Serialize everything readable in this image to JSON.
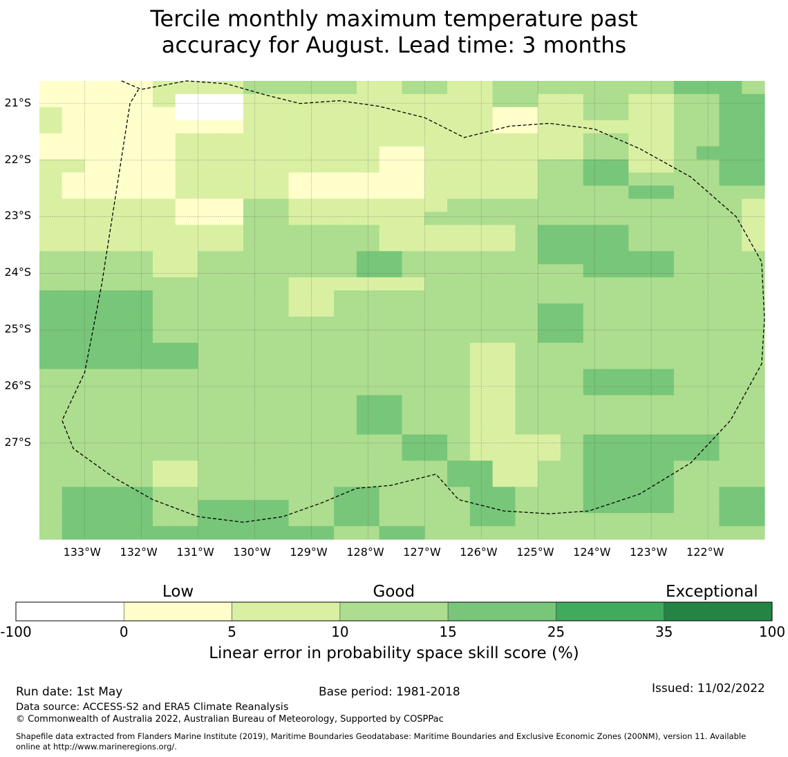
{
  "title_line1": "Tercile monthly maximum temperature past",
  "title_line2": "accuracy for August. Lead time: 3 months",
  "map": {
    "lon_min": -133.8,
    "lon_max": -121.0,
    "lat_top": -20.6,
    "lat_bottom": -28.7,
    "cell_lon": 0.8333333,
    "cell_lat": 0.5555556,
    "lon_ticks": [
      {
        "value": -133,
        "label": "133°W"
      },
      {
        "value": -132,
        "label": "132°W"
      },
      {
        "value": -131,
        "label": "131°W"
      },
      {
        "value": -130,
        "label": "130°W"
      },
      {
        "value": -129,
        "label": "129°W"
      },
      {
        "value": -128,
        "label": "128°W"
      },
      {
        "value": -127,
        "label": "127°W"
      },
      {
        "value": -126,
        "label": "126°W"
      },
      {
        "value": -125,
        "label": "125°W"
      },
      {
        "value": -124,
        "label": "124°W"
      },
      {
        "value": -123,
        "label": "123°W"
      },
      {
        "value": -122,
        "label": "122°W"
      }
    ],
    "lat_ticks": [
      {
        "value": -21,
        "label": "21°S"
      },
      {
        "value": -22,
        "label": "22°S"
      },
      {
        "value": -23,
        "label": "23°S"
      },
      {
        "value": -24,
        "label": "24°S"
      },
      {
        "value": -25,
        "label": "25°S"
      },
      {
        "value": -26,
        "label": "26°S"
      },
      {
        "value": -27,
        "label": "27°S"
      }
    ],
    "grid": [
      [
        1,
        1,
        1,
        1,
        1,
        2,
        2,
        2,
        2,
        3,
        3,
        3,
        3,
        3,
        2,
        2,
        3,
        3,
        2,
        2,
        3,
        3,
        3,
        3,
        3,
        3,
        3,
        3,
        4,
        4,
        4,
        3
      ],
      [
        1,
        1,
        1,
        1,
        1,
        2,
        0,
        0,
        0,
        2,
        2,
        2,
        2,
        2,
        2,
        2,
        2,
        2,
        2,
        2,
        3,
        3,
        2,
        2,
        3,
        3,
        2,
        2,
        3,
        3,
        4,
        4
      ],
      [
        2,
        1,
        1,
        1,
        1,
        1,
        0,
        0,
        0,
        2,
        2,
        2,
        2,
        2,
        2,
        2,
        2,
        2,
        2,
        2,
        1,
        1,
        2,
        2,
        3,
        3,
        2,
        2,
        3,
        3,
        4,
        4
      ],
      [
        2,
        1,
        1,
        1,
        1,
        1,
        1,
        1,
        1,
        2,
        2,
        2,
        2,
        2,
        2,
        2,
        2,
        2,
        2,
        2,
        1,
        1,
        2,
        2,
        2,
        2,
        2,
        2,
        3,
        3,
        4,
        4
      ],
      [
        1,
        1,
        1,
        1,
        1,
        1,
        2,
        2,
        2,
        2,
        2,
        2,
        2,
        2,
        2,
        2,
        2,
        2,
        2,
        2,
        2,
        2,
        2,
        2,
        3,
        3,
        2,
        2,
        3,
        3,
        4,
        4
      ],
      [
        1,
        1,
        1,
        1,
        1,
        1,
        2,
        2,
        2,
        2,
        2,
        2,
        2,
        2,
        2,
        1,
        1,
        2,
        2,
        2,
        2,
        2,
        2,
        2,
        3,
        3,
        2,
        2,
        3,
        4,
        4,
        4
      ],
      [
        2,
        2,
        1,
        1,
        1,
        1,
        2,
        2,
        2,
        2,
        2,
        2,
        2,
        2,
        2,
        1,
        1,
        2,
        2,
        2,
        2,
        2,
        3,
        3,
        4,
        4,
        2,
        2,
        3,
        3,
        4,
        4
      ],
      [
        2,
        1,
        1,
        1,
        1,
        1,
        2,
        2,
        2,
        2,
        2,
        1,
        1,
        1,
        1,
        1,
        1,
        2,
        2,
        2,
        2,
        2,
        3,
        3,
        4,
        4,
        3,
        3,
        3,
        3,
        4,
        4
      ],
      [
        2,
        1,
        1,
        1,
        1,
        1,
        2,
        2,
        2,
        2,
        2,
        1,
        1,
        1,
        1,
        1,
        1,
        2,
        2,
        2,
        2,
        2,
        3,
        3,
        3,
        3,
        4,
        4,
        3,
        3,
        3,
        3
      ],
      [
        2,
        2,
        2,
        2,
        2,
        2,
        1,
        1,
        1,
        3,
        3,
        2,
        2,
        2,
        2,
        2,
        2,
        2,
        3,
        3,
        3,
        3,
        3,
        3,
        3,
        3,
        3,
        3,
        3,
        3,
        3,
        2
      ],
      [
        2,
        2,
        2,
        2,
        2,
        2,
        1,
        1,
        1,
        3,
        3,
        2,
        2,
        2,
        2,
        2,
        2,
        3,
        3,
        3,
        3,
        3,
        3,
        3,
        3,
        3,
        3,
        3,
        3,
        3,
        3,
        2
      ],
      [
        2,
        2,
        2,
        2,
        2,
        2,
        2,
        2,
        2,
        3,
        3,
        3,
        3,
        3,
        3,
        2,
        2,
        2,
        2,
        2,
        2,
        3,
        4,
        4,
        4,
        4,
        3,
        3,
        3,
        3,
        3,
        2
      ],
      [
        2,
        2,
        2,
        2,
        2,
        2,
        2,
        2,
        2,
        3,
        3,
        3,
        3,
        3,
        3,
        2,
        2,
        2,
        2,
        2,
        2,
        3,
        4,
        4,
        4,
        4,
        3,
        3,
        3,
        3,
        3,
        2
      ],
      [
        3,
        3,
        3,
        3,
        3,
        2,
        2,
        3,
        3,
        3,
        3,
        3,
        3,
        3,
        4,
        4,
        3,
        3,
        3,
        3,
        3,
        3,
        4,
        4,
        4,
        4,
        4,
        4,
        3,
        3,
        3,
        3
      ],
      [
        3,
        3,
        3,
        3,
        3,
        2,
        2,
        3,
        3,
        3,
        3,
        3,
        3,
        3,
        4,
        4,
        3,
        3,
        3,
        3,
        3,
        3,
        3,
        3,
        4,
        4,
        4,
        4,
        3,
        3,
        3,
        3
      ],
      [
        3,
        3,
        3,
        3,
        3,
        3,
        3,
        3,
        3,
        3,
        3,
        2,
        2,
        2,
        2,
        2,
        2,
        3,
        3,
        3,
        3,
        3,
        3,
        3,
        3,
        3,
        3,
        3,
        3,
        3,
        3,
        3
      ],
      [
        4,
        4,
        4,
        4,
        4,
        3,
        3,
        3,
        3,
        3,
        3,
        2,
        2,
        3,
        3,
        3,
        3,
        3,
        3,
        3,
        3,
        3,
        3,
        3,
        3,
        3,
        3,
        3,
        3,
        3,
        3,
        3
      ],
      [
        4,
        4,
        4,
        4,
        4,
        3,
        3,
        3,
        3,
        3,
        3,
        2,
        2,
        3,
        3,
        3,
        3,
        3,
        3,
        3,
        3,
        3,
        4,
        4,
        3,
        3,
        3,
        3,
        3,
        3,
        3,
        3
      ],
      [
        4,
        4,
        4,
        4,
        4,
        3,
        3,
        3,
        3,
        3,
        3,
        3,
        3,
        3,
        3,
        3,
        3,
        3,
        3,
        3,
        3,
        3,
        4,
        4,
        3,
        3,
        3,
        3,
        3,
        3,
        3,
        3
      ],
      [
        4,
        4,
        4,
        4,
        4,
        3,
        3,
        3,
        3,
        3,
        3,
        3,
        3,
        3,
        3,
        3,
        3,
        3,
        3,
        3,
        3,
        3,
        4,
        4,
        3,
        3,
        3,
        3,
        3,
        3,
        3,
        3
      ],
      [
        4,
        4,
        4,
        4,
        4,
        4,
        4,
        3,
        3,
        3,
        3,
        3,
        3,
        3,
        3,
        3,
        3,
        3,
        3,
        2,
        2,
        3,
        3,
        3,
        3,
        3,
        3,
        3,
        3,
        3,
        3,
        3
      ],
      [
        4,
        4,
        4,
        4,
        4,
        4,
        4,
        3,
        3,
        3,
        3,
        3,
        3,
        3,
        3,
        3,
        3,
        3,
        3,
        2,
        2,
        3,
        3,
        3,
        3,
        3,
        3,
        3,
        3,
        3,
        3,
        3
      ],
      [
        3,
        3,
        3,
        3,
        3,
        3,
        3,
        3,
        3,
        3,
        3,
        3,
        3,
        3,
        3,
        3,
        3,
        3,
        3,
        2,
        2,
        3,
        3,
        3,
        4,
        4,
        4,
        4,
        3,
        3,
        3,
        3
      ],
      [
        3,
        3,
        3,
        3,
        3,
        3,
        3,
        3,
        3,
        3,
        3,
        3,
        3,
        3,
        3,
        3,
        3,
        3,
        3,
        2,
        2,
        3,
        3,
        3,
        4,
        4,
        4,
        4,
        3,
        3,
        3,
        3
      ],
      [
        3,
        3,
        3,
        3,
        3,
        3,
        3,
        3,
        3,
        3,
        3,
        3,
        3,
        3,
        4,
        4,
        3,
        3,
        3,
        2,
        2,
        3,
        3,
        3,
        3,
        3,
        3,
        3,
        3,
        3,
        3,
        3
      ],
      [
        3,
        3,
        3,
        3,
        3,
        3,
        3,
        3,
        3,
        3,
        3,
        3,
        3,
        3,
        4,
        4,
        3,
        3,
        3,
        2,
        2,
        3,
        3,
        3,
        3,
        3,
        3,
        3,
        3,
        3,
        3,
        3
      ],
      [
        3,
        3,
        3,
        3,
        3,
        3,
        3,
        3,
        3,
        3,
        3,
        3,
        3,
        3,
        4,
        4,
        3,
        3,
        3,
        2,
        2,
        3,
        3,
        3,
        3,
        3,
        3,
        3,
        3,
        3,
        3,
        3
      ],
      [
        3,
        3,
        3,
        3,
        3,
        3,
        3,
        3,
        3,
        3,
        3,
        3,
        3,
        3,
        3,
        3,
        4,
        4,
        3,
        2,
        2,
        2,
        2,
        3,
        4,
        4,
        4,
        4,
        4,
        4,
        3,
        3
      ],
      [
        3,
        3,
        3,
        3,
        3,
        3,
        3,
        3,
        3,
        3,
        3,
        3,
        3,
        3,
        3,
        3,
        4,
        4,
        3,
        2,
        2,
        2,
        2,
        3,
        4,
        4,
        4,
        4,
        4,
        4,
        3,
        3
      ],
      [
        3,
        3,
        3,
        3,
        3,
        2,
        2,
        3,
        3,
        3,
        3,
        3,
        3,
        3,
        3,
        3,
        3,
        3,
        4,
        4,
        2,
        2,
        3,
        3,
        4,
        4,
        4,
        4,
        3,
        3,
        3,
        3
      ],
      [
        3,
        3,
        3,
        3,
        3,
        2,
        2,
        3,
        3,
        3,
        3,
        3,
        3,
        3,
        3,
        3,
        3,
        3,
        4,
        4,
        2,
        2,
        3,
        3,
        4,
        4,
        4,
        4,
        3,
        3,
        3,
        3
      ],
      [
        3,
        4,
        4,
        4,
        4,
        3,
        3,
        3,
        3,
        3,
        3,
        3,
        3,
        4,
        4,
        3,
        3,
        3,
        3,
        4,
        4,
        3,
        3,
        3,
        4,
        4,
        4,
        4,
        3,
        3,
        4,
        4
      ],
      [
        3,
        4,
        4,
        4,
        4,
        3,
        3,
        4,
        4,
        4,
        4,
        3,
        3,
        4,
        4,
        3,
        3,
        3,
        3,
        4,
        4,
        3,
        3,
        3,
        4,
        4,
        4,
        4,
        3,
        3,
        4,
        4
      ],
      [
        3,
        4,
        4,
        4,
        4,
        3,
        3,
        4,
        4,
        4,
        4,
        3,
        3,
        4,
        4,
        3,
        3,
        3,
        3,
        4,
        4,
        3,
        3,
        3,
        3,
        3,
        3,
        3,
        3,
        3,
        4,
        4
      ],
      [
        3,
        4,
        4,
        4,
        4,
        4,
        4,
        4,
        4,
        4,
        4,
        4,
        4,
        3,
        3,
        4,
        4,
        3,
        3,
        3,
        3,
        3,
        3,
        3,
        3,
        3,
        3,
        3,
        3,
        3,
        3,
        3
      ]
    ],
    "boundary": [
      [
        -132.35,
        -20.15
      ],
      [
        -132.0,
        -20.75
      ],
      [
        -131.2,
        -20.55
      ],
      [
        -130.5,
        -20.65
      ],
      [
        -129.8,
        -20.85
      ],
      [
        -129.2,
        -21.0
      ],
      [
        -128.5,
        -20.95
      ],
      [
        -127.8,
        -21.05
      ],
      [
        -127.0,
        -21.25
      ],
      [
        -126.3,
        -21.6
      ],
      [
        -125.5,
        -21.4
      ],
      [
        -124.8,
        -21.35
      ],
      [
        -124.0,
        -21.45
      ],
      [
        -123.2,
        -21.8
      ],
      [
        -122.3,
        -22.3
      ],
      [
        -121.5,
        -23.0
      ],
      [
        -121.05,
        -23.8
      ],
      [
        -120.9,
        -24.8
      ],
      [
        -121.05,
        -25.6
      ],
      [
        -121.6,
        -26.6
      ],
      [
        -122.3,
        -27.35
      ],
      [
        -123.2,
        -27.9
      ],
      [
        -124.1,
        -28.2
      ],
      [
        -124.8,
        -28.25
      ],
      [
        -125.6,
        -28.2
      ],
      [
        -126.4,
        -28.0
      ],
      [
        -126.8,
        -27.55
      ],
      [
        -127.6,
        -27.75
      ],
      [
        -128.2,
        -27.8
      ],
      [
        -128.8,
        -28.05
      ],
      [
        -129.5,
        -28.3
      ],
      [
        -130.2,
        -28.4
      ],
      [
        -131.0,
        -28.3
      ],
      [
        -131.8,
        -28.0
      ],
      [
        -132.5,
        -27.6
      ],
      [
        -133.2,
        -27.1
      ],
      [
        -133.4,
        -26.6
      ],
      [
        -133.0,
        -25.75
      ],
      [
        -132.7,
        -24.2
      ],
      [
        -132.2,
        -21.0
      ],
      [
        -132.05,
        -20.75
      ]
    ]
  },
  "colorbar": {
    "colors": [
      "#ffffff",
      "#ffffcc",
      "#d9f0a3",
      "#addd8e",
      "#78c679",
      "#41ab5d",
      "#238443"
    ],
    "ticks": [
      "-100",
      "0",
      "5",
      "10",
      "15",
      "25",
      "35",
      "100"
    ],
    "categories": [
      {
        "label": "Low",
        "pos": 1.5
      },
      {
        "label": "Good",
        "pos": 3.5
      },
      {
        "label": "Exceptional",
        "pos": 6.5
      }
    ],
    "label": "Linear error in probability space skill score (%)"
  },
  "footer": {
    "run_date": "Run date: 1st May",
    "base_period": "Base period: 1981-2018",
    "issued": "Issued: 11/02/2022",
    "data_source": "Data source: ACCESS-S2 and ERA5 Climate Reanalysis",
    "copyright": "© Commonwealth of Australia 2022, Australian Bureau of Meteorology, Supported by COSPPac",
    "shapefile_line1": "Shapefile data extracted from Flanders Marine Institute (2019), Maritime Boundaries Geodatabase: Maritime Boundaries and Exclusive Economic Zones (200NM), version 11. Available",
    "shapefile_line2": "online at http://www.marineregions.org/."
  }
}
